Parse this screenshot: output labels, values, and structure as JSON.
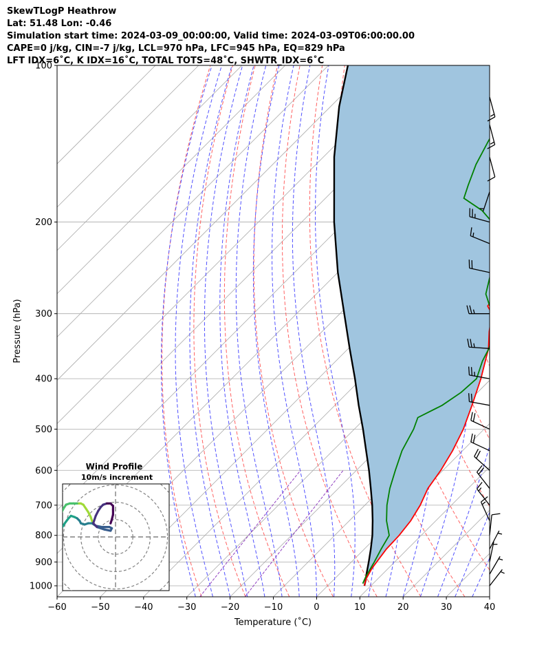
{
  "header": {
    "lines": [
      "SkewTLogP Heathrow",
      "Lat: 51.48   Lon: -0.46",
      "Simulation start time: 2024-03-09_00:00:00, Valid time: 2024-03-09T06:00:00.00",
      "CAPE=0 j/kg, CIN=-7 j/kg, LCL=970 hPa, LFC=945 hPa, EQ=829 hPa",
      "LFT IDX=6˚C, K IDX=16˚C, TOTAL TOTS=48˚C, SHWTR_IDX=6˚C"
    ]
  },
  "chart_data": {
    "type": "line",
    "xlabel": "Temperature (˚C)",
    "ylabel": "Pressure (hPa)",
    "xlim": [
      -60,
      40
    ],
    "ylim": [
      1050,
      100
    ],
    "y_scale": "log",
    "x_ticks": [
      -60,
      -50,
      -40,
      -30,
      -20,
      -10,
      0,
      10,
      20,
      30,
      40
    ],
    "x_tick_labels": [
      "−60",
      "−50",
      "−40",
      "−30",
      "−20",
      "−10",
      "0",
      "10",
      "20",
      "30",
      "40"
    ],
    "y_ticks": [
      1000,
      900,
      800,
      700,
      600,
      500,
      400,
      300,
      200,
      100
    ],
    "y_tick_labels": [
      "1000",
      "900",
      "800",
      "700",
      "600",
      "500",
      "400",
      "300",
      "200",
      "100"
    ],
    "grid": true,
    "skew": true,
    "colors": {
      "temperature": "#ff0000",
      "dewpoint": "#008000",
      "parcel": "#000000",
      "shade": "#a0c5df",
      "dry_adiabat": "#ff6060",
      "moist_adiabat": "#5050ff",
      "mixing_ratio": "#9040c0",
      "isotherm": "#aaaaaa"
    },
    "series": [
      {
        "role": "temperature",
        "points": [
          [
            1000,
            8.5
          ],
          [
            970,
            7.3
          ],
          [
            925,
            6.2
          ],
          [
            850,
            5.1
          ],
          [
            800,
            4.9
          ],
          [
            750,
            4.2
          ],
          [
            700,
            2.8
          ],
          [
            650,
            0.7
          ],
          [
            600,
            -0.5
          ],
          [
            550,
            -2.3
          ],
          [
            500,
            -4.8
          ],
          [
            450,
            -8.3
          ],
          [
            400,
            -12.4
          ],
          [
            350,
            -17.6
          ],
          [
            325,
            -21.3
          ],
          [
            300,
            -24.9
          ],
          [
            290,
            -27.6
          ],
          [
            275,
            -28.3
          ],
          [
            250,
            -29.6
          ],
          [
            235,
            -30.6
          ],
          [
            215,
            -29.6
          ],
          [
            200,
            -27.6
          ],
          [
            185,
            -24.6
          ],
          [
            170,
            -24.6
          ],
          [
            155,
            -23.3
          ],
          [
            140,
            -22.0
          ],
          [
            125,
            -20.7
          ],
          [
            110,
            -20.5
          ],
          [
            100,
            -20.5
          ]
        ]
      },
      {
        "role": "dewpoint",
        "points": [
          [
            990,
            7.6
          ],
          [
            960,
            6.7
          ],
          [
            900,
            5.3
          ],
          [
            850,
            3.9
          ],
          [
            800,
            2.6
          ],
          [
            750,
            -1.4
          ],
          [
            700,
            -4.9
          ],
          [
            650,
            -8.1
          ],
          [
            600,
            -11.0
          ],
          [
            550,
            -14.0
          ],
          [
            500,
            -16.3
          ],
          [
            475,
            -18.0
          ],
          [
            450,
            -15.2
          ],
          [
            425,
            -13.8
          ],
          [
            400,
            -13.4
          ],
          [
            370,
            -16.1
          ],
          [
            350,
            -17.5
          ],
          [
            325,
            -20.2
          ],
          [
            300,
            -24.8
          ],
          [
            275,
            -30.8
          ],
          [
            250,
            -34.6
          ],
          [
            225,
            -38.6
          ],
          [
            210,
            -41.0
          ],
          [
            200,
            -46.0
          ],
          [
            190,
            -51.0
          ],
          [
            180,
            -58.0
          ],
          [
            170,
            -60.0
          ],
          [
            155,
            -63.0
          ],
          [
            140,
            -65.5
          ],
          [
            125,
            -68.0
          ],
          [
            110,
            -70.0
          ],
          [
            100,
            -70.5
          ]
        ]
      },
      {
        "role": "parcel",
        "points": [
          [
            1000,
            8.5
          ],
          [
            970,
            7.3
          ],
          [
            950,
            6.3
          ],
          [
            900,
            4.0
          ],
          [
            850,
            1.5
          ],
          [
            800,
            -1.3
          ],
          [
            750,
            -4.6
          ],
          [
            700,
            -8.3
          ],
          [
            650,
            -12.5
          ],
          [
            600,
            -17.1
          ],
          [
            550,
            -22.3
          ],
          [
            500,
            -28.0
          ],
          [
            450,
            -34.5
          ],
          [
            400,
            -41.5
          ],
          [
            350,
            -49.7
          ],
          [
            300,
            -59.0
          ],
          [
            250,
            -70.0
          ],
          [
            200,
            -82.5
          ],
          [
            150,
            -97.5
          ],
          [
            120,
            -108.0
          ],
          [
            100,
            -115.5
          ]
        ]
      }
    ],
    "wind_barbs": [
      {
        "p": 1000,
        "u": 4.2,
        "v": 5.4
      },
      {
        "p": 950,
        "u": 3.4,
        "v": 5.8
      },
      {
        "p": 900,
        "u": 1.4,
        "v": 6.9
      },
      {
        "p": 850,
        "u": 2.6,
        "v": 5.0
      },
      {
        "p": 800,
        "u": 1.0,
        "v": 9.5
      },
      {
        "p": 750,
        "u": -5.4,
        "v": 11.8
      },
      {
        "p": 700,
        "u": -9.7,
        "v": 12.4
      },
      {
        "p": 650,
        "u": -12.4,
        "v": 15.9
      },
      {
        "p": 600,
        "u": -14.8,
        "v": 13.3
      },
      {
        "p": 550,
        "u": -18.1,
        "v": 8.4
      },
      {
        "p": 500,
        "u": -18.9,
        "v": 8.8
      },
      {
        "p": 450,
        "u": -20.7,
        "v": 3.7
      },
      {
        "p": 400,
        "u": -23.0,
        "v": 4.1
      },
      {
        "p": 350,
        "u": -25.0,
        "v": 1.7
      },
      {
        "p": 300,
        "u": -26.0,
        "v": 0.0
      },
      {
        "p": 250,
        "u": -20.8,
        "v": 4.5
      },
      {
        "p": 220,
        "u": -15.0,
        "v": 6.1
      },
      {
        "p": 200,
        "u": -23.7,
        "v": 6.4
      },
      {
        "p": 175,
        "u": -2.0,
        "v": -6.0
      },
      {
        "p": 150,
        "u": 2.8,
        "v": -10.5
      },
      {
        "p": 130,
        "u": 3.3,
        "v": -12.6
      },
      {
        "p": 115,
        "u": 3.5,
        "v": -13.0
      }
    ],
    "inset": {
      "title": "Wind Profile",
      "subtitle": "10m/s increment",
      "ring_step": 10,
      "rings": 4,
      "hodograph": [
        [
          -18,
          11
        ],
        [
          -19,
          13
        ],
        [
          -20,
          16
        ],
        [
          -22,
          20
        ],
        [
          -24,
          23
        ],
        [
          -26,
          26
        ],
        [
          -28,
          27
        ],
        [
          -31,
          27
        ],
        [
          -34,
          27
        ],
        [
          -37,
          27
        ],
        [
          -40,
          26
        ],
        [
          -42,
          23
        ],
        [
          -44,
          19
        ],
        [
          -44,
          15
        ],
        [
          -44,
          11
        ],
        [
          -43,
          8
        ],
        [
          -41,
          11
        ],
        [
          -38,
          15
        ],
        [
          -36,
          17
        ],
        [
          -33,
          16
        ],
        [
          -31,
          15
        ],
        [
          -29,
          13
        ],
        [
          -28,
          11
        ],
        [
          -25,
          10
        ],
        [
          -22,
          11
        ],
        [
          -19,
          11
        ],
        [
          -16,
          9
        ],
        [
          -11,
          8
        ],
        [
          -8,
          8
        ],
        [
          -5,
          8
        ],
        [
          -3,
          7
        ],
        [
          -4,
          5
        ],
        [
          -9,
          6
        ],
        [
          -15,
          8
        ],
        [
          -18,
          11
        ],
        [
          -16,
          17
        ],
        [
          -14,
          21
        ],
        [
          -12,
          24
        ],
        [
          -10,
          26
        ],
        [
          -7,
          27
        ],
        [
          -4,
          27
        ],
        [
          -2,
          25
        ],
        [
          -2,
          22
        ],
        [
          -2,
          18
        ],
        [
          -3,
          14
        ],
        [
          -4,
          11
        ]
      ]
    }
  }
}
